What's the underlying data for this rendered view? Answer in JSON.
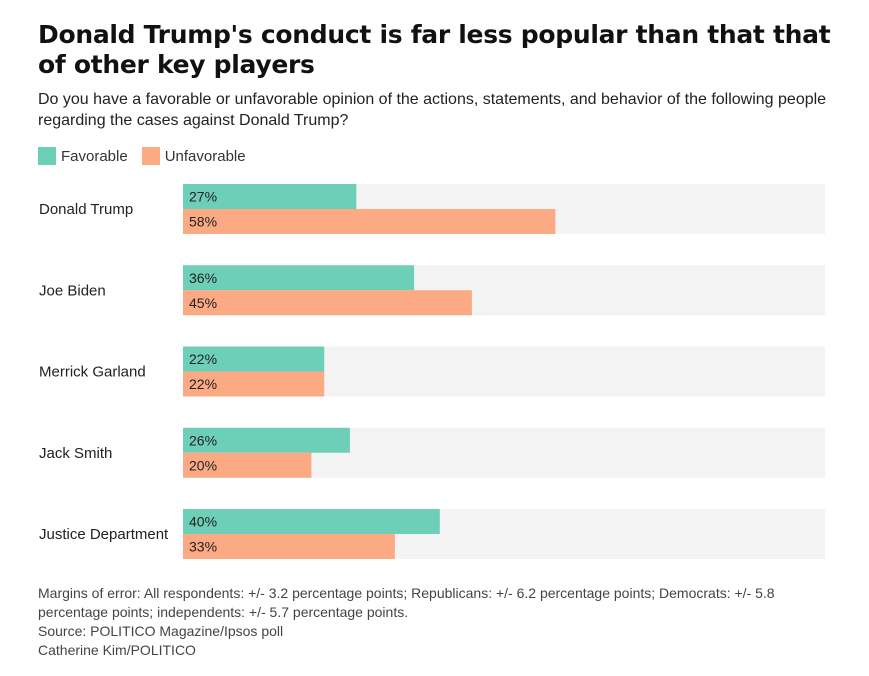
{
  "header": {
    "title": "Donald Trump's conduct is far less popular than that that of other key players",
    "subtitle": "Do you have a favorable or unfavorable opinion of the actions, statements, and behavior of the following people regarding the cases against Donald Trump?"
  },
  "legend": {
    "items": [
      {
        "label": "Favorable",
        "color": "#6ecfb8"
      },
      {
        "label": "Unfavorable",
        "color": "#fbaa84"
      }
    ]
  },
  "chart_data": {
    "type": "bar",
    "orientation": "horizontal",
    "categories": [
      "Donald Trump",
      "Joe Biden",
      "Merrick Garland",
      "Jack Smith",
      "Justice Department"
    ],
    "series": [
      {
        "name": "Favorable",
        "color": "#6ecfb8",
        "values": [
          27,
          36,
          22,
          26,
          40
        ]
      },
      {
        "name": "Unfavorable",
        "color": "#fbaa84",
        "values": [
          58,
          45,
          22,
          20,
          33
        ]
      }
    ],
    "value_suffix": "%",
    "xlim": [
      0,
      100
    ],
    "track_color": "#f3f3f3",
    "grid": false,
    "legend_position": "top-left"
  },
  "footer": {
    "note": "Margins of error: All respondents: +/- 3.2 percentage points; Republicans: +/- 6.2 percentage points; Democrats: +/- 5.8 percentage points; independents: +/- 5.7 percentage points.",
    "source": "Source: POLITICO Magazine/Ipsos poll",
    "credit": "Catherine Kim/POLITICO"
  }
}
